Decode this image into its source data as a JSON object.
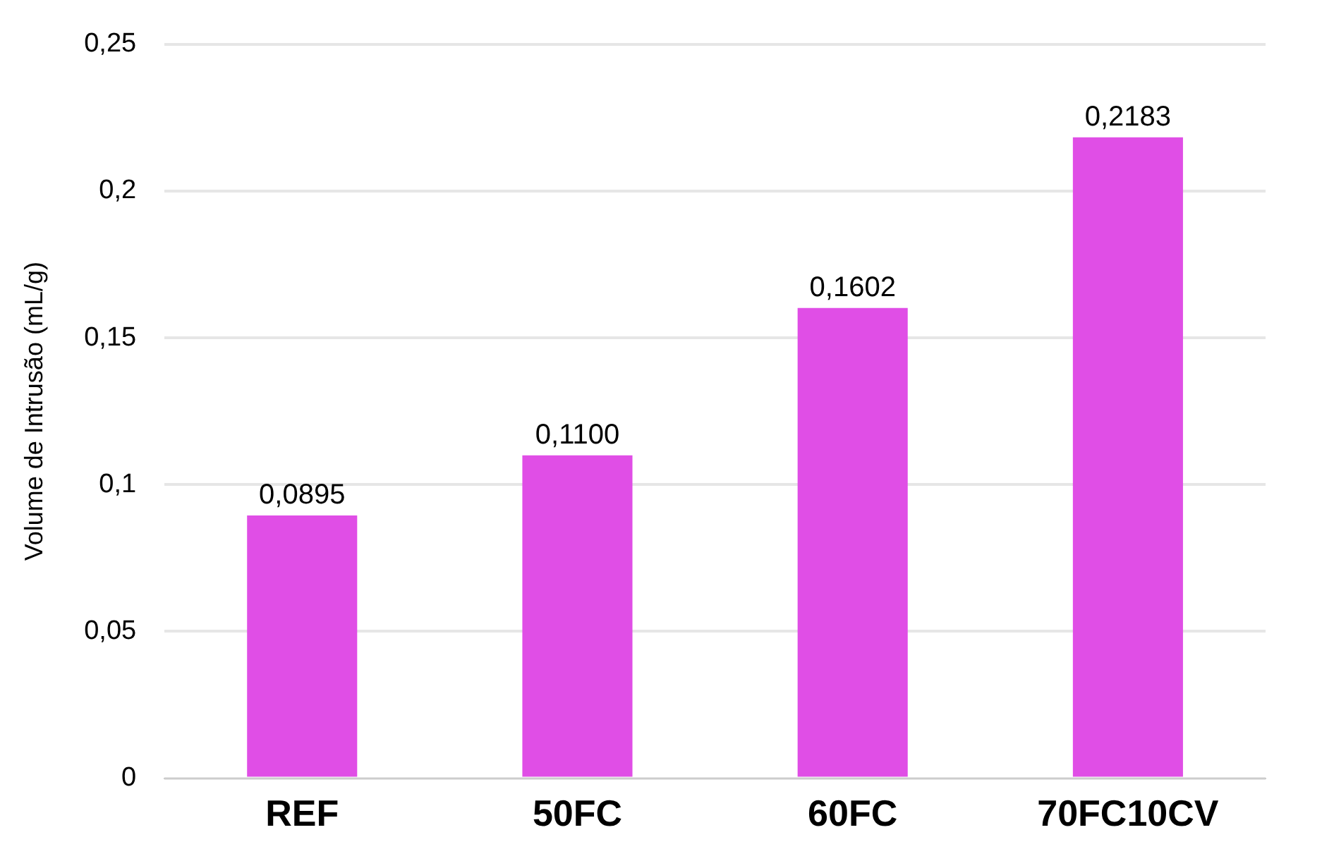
{
  "chart_data": {
    "type": "bar",
    "ylabel": "Volume de Intrusão (mL/g)",
    "categories": [
      "REF",
      "50FC",
      "60FC",
      "70FC10CV"
    ],
    "values": [
      0.0895,
      0.11,
      0.1602,
      0.2183
    ],
    "value_labels": [
      "0,0895",
      "0,1100",
      "0,1602",
      "0,2183"
    ],
    "color": "#e04ee6",
    "ylim": [
      0,
      0.25
    ],
    "yticks": [
      0,
      {
        "value": 0.05,
        "label": "0,05"
      },
      {
        "value": 0.1,
        "label": "0,1"
      },
      {
        "value": 0.15,
        "label": "0,15"
      },
      {
        "value": 0.2,
        "label": "0,2"
      },
      {
        "value": 0.25,
        "label": "0,25"
      }
    ],
    "grid": "y",
    "legend": false
  }
}
